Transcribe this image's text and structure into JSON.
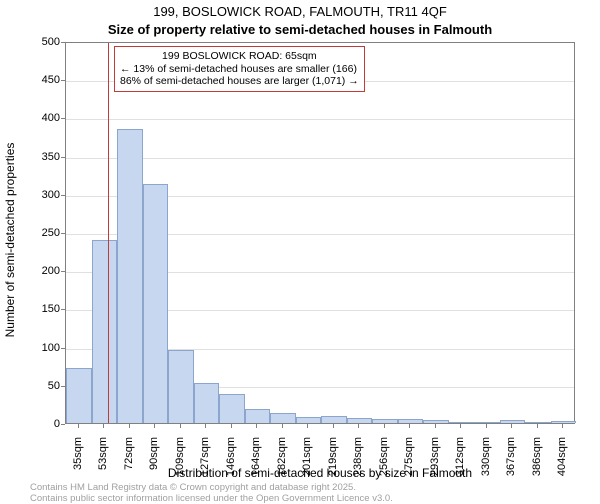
{
  "chart": {
    "type": "histogram",
    "title_main": "199, BOSLOWICK ROAD, FALMOUTH, TR11 4QF",
    "title_sub": "Size of property relative to semi-detached houses in Falmouth",
    "title_fontsize": 13,
    "background_color": "#ffffff",
    "plot_border_color": "#808080",
    "grid_color": "#e0e0e0",
    "bar_fill_color": "#c7d7ef",
    "bar_border_color": "#8ba5cc",
    "marker_line_color": "#c23b3b",
    "annotation_border_color": "#c23b3b",
    "footer_text_color": "#a0a0a0",
    "ylabel": "Number of semi-detached properties",
    "xlabel": "Distribution of semi-detached houses by size in Falmouth",
    "label_fontsize": 12,
    "tick_fontsize": 11,
    "ylim": [
      0,
      500
    ],
    "ytick_step": 50,
    "yticks": [
      0,
      50,
      100,
      150,
      200,
      250,
      300,
      350,
      400,
      450,
      500
    ],
    "x_categories": [
      "35sqm",
      "53sqm",
      "72sqm",
      "90sqm",
      "109sqm",
      "127sqm",
      "146sqm",
      "164sqm",
      "182sqm",
      "201sqm",
      "219sqm",
      "238sqm",
      "256sqm",
      "275sqm",
      "293sqm",
      "312sqm",
      "330sqm",
      "367sqm",
      "386sqm",
      "404sqm"
    ],
    "values": [
      72,
      240,
      385,
      313,
      95,
      52,
      38,
      18,
      13,
      8,
      9,
      7,
      5,
      5,
      4,
      0,
      0,
      4,
      0,
      3
    ],
    "bar_width": 1.0,
    "marker_position_index": 1.65,
    "annotation": {
      "line1": "199 BOSLOWICK ROAD: 65sqm",
      "line2": "← 13% of semi-detached houses are smaller (166)",
      "line3": "86% of semi-detached houses are larger (1,071) →",
      "fontsize": 10.5
    },
    "footer1": "Contains HM Land Registry data © Crown copyright and database right 2025.",
    "footer2": "Contains public sector information licensed under the Open Government Licence v3.0."
  }
}
